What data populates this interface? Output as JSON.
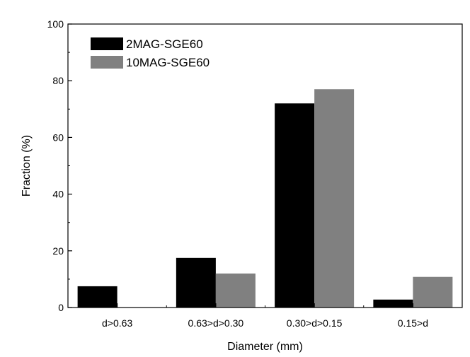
{
  "chart_data": {
    "type": "bar",
    "xlabel": "Diameter (mm)",
    "ylabel": "Fraction (%)",
    "ylim": [
      0,
      100
    ],
    "y_major_ticks": [
      0,
      20,
      40,
      60,
      80,
      100
    ],
    "y_tick_labels": [
      "0",
      "20",
      "40",
      "60",
      "80",
      "100"
    ],
    "categories": [
      "d>0.63",
      "0.63>d>0.30",
      "0.30>d>0.15",
      "0.15>d"
    ],
    "series": [
      {
        "name": "2MAG-SGE60",
        "color": "#000000",
        "values": [
          7.5,
          17.5,
          72,
          2.8
        ]
      },
      {
        "name": "10MAG-SGE60",
        "color": "#808080",
        "values": [
          0,
          12,
          77,
          10.8
        ]
      }
    ],
    "legend_position": "top-left",
    "grid": false
  }
}
